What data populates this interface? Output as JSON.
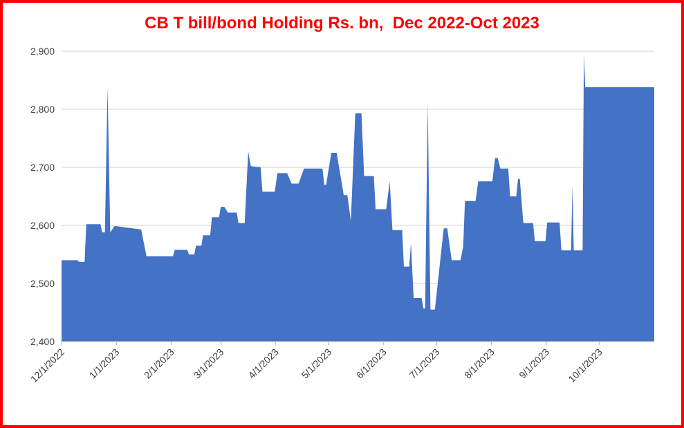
{
  "title": {
    "text": "CB T bill/bond Holding Rs. bn,  Dec 2022-Oct 2023"
  },
  "chart_data": {
    "type": "area",
    "title": "CB T bill/bond Holding Rs. bn,  Dec 2022-Oct 2023",
    "xlabel": "",
    "ylabel": "",
    "x_unit": "days since 2022-12-01",
    "x_range": [
      0,
      335
    ],
    "ylim": [
      2400,
      2900
    ],
    "grid": true,
    "legend": false,
    "y_ticks": {
      "values": [
        2400,
        2500,
        2600,
        2700,
        2800,
        2900
      ],
      "labels": [
        "2,400",
        "2,500",
        "2,600",
        "2,700",
        "2,800",
        "2,900"
      ]
    },
    "x_ticks": {
      "days": [
        0,
        31,
        62,
        90,
        121,
        151,
        182,
        212,
        243,
        274,
        304
      ],
      "labels": [
        "12/1/2022",
        "1/1/2023",
        "2/1/2023",
        "3/1/2023",
        "4/1/2023",
        "5/1/2023",
        "6/1/2023",
        "7/1/2023",
        "8/1/2023",
        "9/1/2023",
        "10/1/2023"
      ]
    },
    "series": [
      {
        "name": "CB T bill/bond Holding Rs. bn",
        "points": [
          [
            0,
            2540
          ],
          [
            9,
            2540
          ],
          [
            10,
            2537
          ],
          [
            13,
            2537
          ],
          [
            14,
            2602
          ],
          [
            22,
            2602
          ],
          [
            23,
            2588
          ],
          [
            24.5,
            2588
          ],
          [
            26,
            2838
          ],
          [
            27.5,
            2588
          ],
          [
            30,
            2599
          ],
          [
            45,
            2593
          ],
          [
            48,
            2547
          ],
          [
            63,
            2547
          ],
          [
            64,
            2558
          ],
          [
            71,
            2558
          ],
          [
            72,
            2550
          ],
          [
            75,
            2550
          ],
          [
            76,
            2565
          ],
          [
            79,
            2565
          ],
          [
            80,
            2583
          ],
          [
            84,
            2583
          ],
          [
            85,
            2614
          ],
          [
            89,
            2614
          ],
          [
            90,
            2632
          ],
          [
            92,
            2632
          ],
          [
            94,
            2622
          ],
          [
            99,
            2622
          ],
          [
            100,
            2604
          ],
          [
            103.5,
            2604
          ],
          [
            105.5,
            2727
          ],
          [
            107,
            2702
          ],
          [
            112.5,
            2700
          ],
          [
            113.5,
            2658
          ],
          [
            120.5,
            2658
          ],
          [
            122,
            2690
          ],
          [
            127.5,
            2690
          ],
          [
            130,
            2672
          ],
          [
            134,
            2672
          ],
          [
            137,
            2698
          ],
          [
            147.5,
            2698
          ],
          [
            148.5,
            2670
          ],
          [
            149.5,
            2670
          ],
          [
            152.5,
            2725
          ],
          [
            155.5,
            2725
          ],
          [
            159.5,
            2652
          ],
          [
            161.5,
            2652
          ],
          [
            163.5,
            2608
          ],
          [
            166,
            2793
          ],
          [
            169.5,
            2793
          ],
          [
            171,
            2685
          ],
          [
            176.5,
            2685
          ],
          [
            177.5,
            2628
          ],
          [
            183.5,
            2628
          ],
          [
            185.5,
            2676
          ],
          [
            187,
            2592
          ],
          [
            192.5,
            2592
          ],
          [
            193.5,
            2529
          ],
          [
            196.5,
            2529
          ],
          [
            197.5,
            2570
          ],
          [
            199,
            2475
          ],
          [
            203.5,
            2475
          ],
          [
            204.5,
            2457
          ],
          [
            205.5,
            2457
          ],
          [
            207,
            2810
          ],
          [
            208.5,
            2455
          ],
          [
            211,
            2455
          ],
          [
            216,
            2595
          ],
          [
            218,
            2595
          ],
          [
            220.5,
            2540
          ],
          [
            225.5,
            2540
          ],
          [
            227,
            2564
          ],
          [
            228,
            2642
          ],
          [
            234,
            2642
          ],
          [
            235.5,
            2676
          ],
          [
            243.5,
            2676
          ],
          [
            245,
            2716
          ],
          [
            246.5,
            2716
          ],
          [
            248,
            2698
          ],
          [
            252.5,
            2698
          ],
          [
            253.5,
            2650
          ],
          [
            257,
            2650
          ],
          [
            258,
            2680
          ],
          [
            259,
            2680
          ],
          [
            261,
            2604
          ],
          [
            266.5,
            2604
          ],
          [
            267.5,
            2573
          ],
          [
            273.5,
            2573
          ],
          [
            274.5,
            2605
          ],
          [
            281.5,
            2605
          ],
          [
            282.5,
            2557
          ],
          [
            288,
            2557
          ],
          [
            288.7,
            2668
          ],
          [
            289.5,
            2557
          ],
          [
            294.5,
            2557
          ],
          [
            295.2,
            2895
          ],
          [
            296,
            2838
          ],
          [
            335,
            2838
          ]
        ]
      }
    ],
    "colors": {
      "area": "#4472C4",
      "gridline": "#D9D9D9",
      "axis_line": "#BFBFBF",
      "axis_text": "#404040",
      "title_text": "#FF0000",
      "frame_border": "#FF0000",
      "background": "#FFFFFF"
    }
  }
}
